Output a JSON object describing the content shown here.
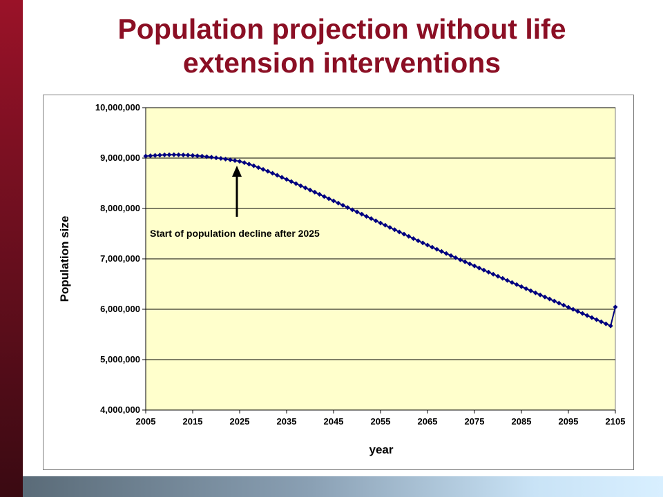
{
  "title_line1": "Population projection without life",
  "title_line2": "extension interventions",
  "colors": {
    "title": "#8b0f24",
    "plot_background": "#ffffcc",
    "series": "#000080",
    "gridline": "#000000"
  },
  "chart_data": {
    "type": "line",
    "title": "",
    "xlabel": "year",
    "ylabel": "Population size",
    "xlim": [
      2005,
      2105
    ],
    "ylim": [
      4000000,
      10000000
    ],
    "x_ticks": [
      "2005",
      "2015",
      "2025",
      "2035",
      "2045",
      "2055",
      "2065",
      "2075",
      "2085",
      "2095",
      "2105"
    ],
    "y_ticks": [
      "4,000,000",
      "5,000,000",
      "6,000,000",
      "7,000,000",
      "8,000,000",
      "9,000,000",
      "10,000,000"
    ],
    "grid": "horizontal",
    "legend": "none",
    "marker": "diamond",
    "annotation": {
      "text": "Start of population decline after 2025",
      "arrow_at_x": 2025
    },
    "series": [
      {
        "x": [
          2005,
          2006,
          2007,
          2008,
          2009,
          2010,
          2011,
          2012,
          2013,
          2014,
          2015,
          2016,
          2017,
          2018,
          2019,
          2020,
          2021,
          2022,
          2023,
          2024,
          2025,
          2026,
          2027,
          2028,
          2029,
          2030,
          2031,
          2032,
          2033,
          2034,
          2035,
          2036,
          2037,
          2038,
          2039,
          2040,
          2041,
          2042,
          2043,
          2044,
          2045,
          2046,
          2047,
          2048,
          2049,
          2050,
          2051,
          2052,
          2053,
          2054,
          2055,
          2056,
          2057,
          2058,
          2059,
          2060,
          2061,
          2062,
          2063,
          2064,
          2065,
          2066,
          2067,
          2068,
          2069,
          2070,
          2071,
          2072,
          2073,
          2074,
          2075,
          2076,
          2077,
          2078,
          2079,
          2080,
          2081,
          2082,
          2083,
          2084,
          2085,
          2086,
          2087,
          2088,
          2089,
          2090,
          2091,
          2092,
          2093,
          2094,
          2095,
          2096,
          2097,
          2098,
          2099,
          2100,
          2101,
          2102,
          2103,
          2104,
          2105
        ],
        "values": [
          9040000,
          9047000,
          9053000,
          9059000,
          9063000,
          9065000,
          9066000,
          9065000,
          9062000,
          9058000,
          9052000,
          9045000,
          9037000,
          9027000,
          9017000,
          9005000,
          8993000,
          8979000,
          8965000,
          8950000,
          8935000,
          8910000,
          8880000,
          8847000,
          8812000,
          8776000,
          8738000,
          8699000,
          8659000,
          8618000,
          8577000,
          8535000,
          8493000,
          8451000,
          8409000,
          8366000,
          8323000,
          8280000,
          8237000,
          8194000,
          8150000,
          8107000,
          8063000,
          8019000,
          7975000,
          7931000,
          7887000,
          7843000,
          7799000,
          7755000,
          7711000,
          7667000,
          7623000,
          7579000,
          7535000,
          7491000,
          7447000,
          7403000,
          7360000,
          7317000,
          7274000,
          7232000,
          7190000,
          7148000,
          7106000,
          7064000,
          7023000,
          6982000,
          6941000,
          6900000,
          6859000,
          6818000,
          6777000,
          6736000,
          6695000,
          6654000,
          6613000,
          6572000,
          6531000,
          6490000,
          6449000,
          6408000,
          6367000,
          6326000,
          6285000,
          6244000,
          6203000,
          6162000,
          6121000,
          6080000,
          6039000,
          5998000,
          5957000,
          5916000,
          5875000,
          5834000,
          5793000,
          5752000,
          5711000,
          5670000,
          6045000
        ]
      }
    ]
  }
}
